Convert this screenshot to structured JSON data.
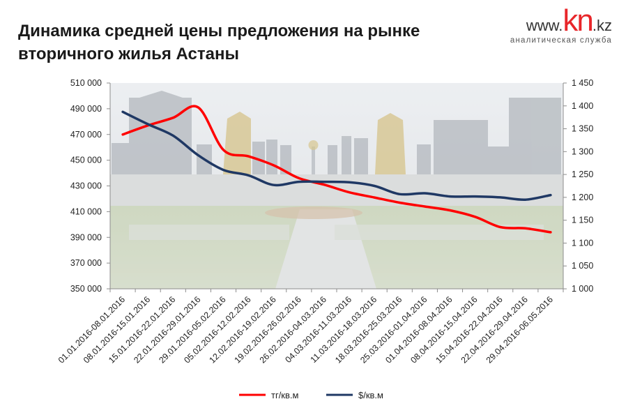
{
  "title": "Динамика средней цены предложения на рынке вторичного жилья  Астаны",
  "logo": {
    "www": "www.",
    "kn": "kn",
    "kz": ".kz",
    "subtitle": "аналитическая служба"
  },
  "chart_data": {
    "type": "line",
    "categories": [
      "01.01.2016-08.01.2016",
      "08.01.2016-15.01.2016",
      "15.01.2016-22.01.2016",
      "22.01.2016-29.01.2016",
      "29.01.2016-05.02.2016",
      "05.02.2016-12.02.2016",
      "12.02.2016-19.02.2016",
      "19.02.2016-26.02.2016",
      "26.02.2016-04.03.2016",
      "04.03.2016-11.03.2016",
      "11.03.2016-18.03.2016",
      "18.03.2016-25.03.2016",
      "25.03.2016-01.04.2016",
      "01.04.2016-08.04.2016",
      "08.04.2016-15.04.2016",
      "15.04.2016-22.04.2016",
      "22.04.2016-29.04.2016",
      "29.04.2016-06.05.2016"
    ],
    "y_left": {
      "min": 350000,
      "max": 510000,
      "step": 20000,
      "tick_labels": [
        "350 000",
        "370 000",
        "390 000",
        "410 000",
        "430 000",
        "450 000",
        "470 000",
        "490 000",
        "510 000"
      ]
    },
    "y_right": {
      "min": 1000,
      "max": 1450,
      "step": 50,
      "tick_labels": [
        "1 000",
        "1 050",
        "1 100",
        "1 150",
        "1 200",
        "1 250",
        "1 300",
        "1 350",
        "1 400",
        "1 450"
      ]
    },
    "series": [
      {
        "name": "тг/кв.м",
        "axis": "left",
        "color": "#ff0000",
        "values": [
          470000,
          477000,
          483000,
          491000,
          458000,
          453000,
          446000,
          436000,
          431000,
          425000,
          421000,
          417000,
          414000,
          411000,
          406000,
          398000,
          397000,
          394000
        ]
      },
      {
        "name": "$/кв.м",
        "axis": "right",
        "color": "#1f3864",
        "values": [
          1387,
          1360,
          1335,
          1292,
          1260,
          1248,
          1227,
          1234,
          1234,
          1233,
          1225,
          1207,
          1209,
          1202,
          1202,
          1200,
          1195,
          1205
        ]
      }
    ],
    "legend_position": "bottom",
    "grid": false,
    "background": "photo of Astana city square"
  }
}
